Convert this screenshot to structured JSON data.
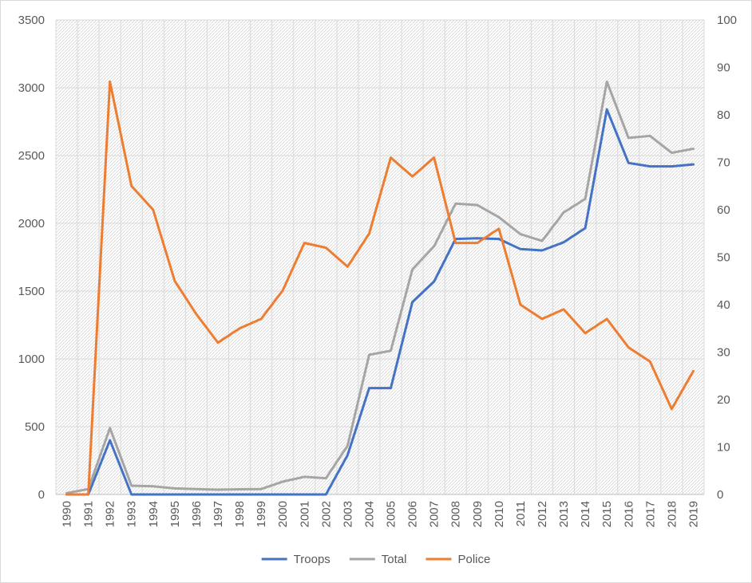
{
  "chart_data": {
    "type": "line",
    "title": "",
    "x": [
      "1990",
      "1991",
      "1992",
      "1993",
      "1994",
      "1995",
      "1996",
      "1997",
      "1998",
      "1999",
      "2000",
      "2001",
      "2002",
      "2003",
      "2004",
      "2005",
      "2006",
      "2007",
      "2008",
      "2009",
      "2010",
      "2011",
      "2012",
      "2013",
      "2014",
      "2015",
      "2016",
      "2017",
      "2018",
      "2019"
    ],
    "y_left": {
      "min": 0,
      "max": 3500,
      "ticks": [
        0,
        500,
        1000,
        1500,
        2000,
        2500,
        3000,
        3500
      ]
    },
    "y_right": {
      "min": 0,
      "max": 100,
      "ticks": [
        0,
        10,
        20,
        30,
        40,
        50,
        60,
        70,
        80,
        90,
        100
      ]
    },
    "grid": true,
    "legend_position": "bottom",
    "series": [
      {
        "name": "Troops",
        "axis": "left",
        "color": "#4472C4",
        "values": [
          0,
          0,
          400,
          0,
          0,
          0,
          0,
          0,
          0,
          0,
          0,
          0,
          0,
          290,
          785,
          785,
          1420,
          1570,
          1885,
          1890,
          1885,
          1810,
          1800,
          1860,
          1965,
          2840,
          2445,
          2420,
          2420,
          2435
        ]
      },
      {
        "name": "Total",
        "axis": "left",
        "color": "#A5A5A5",
        "values": [
          10,
          40,
          490,
          65,
          60,
          45,
          40,
          35,
          38,
          40,
          95,
          130,
          120,
          360,
          1030,
          1060,
          1660,
          1830,
          2145,
          2135,
          2045,
          1920,
          1870,
          2080,
          2180,
          3045,
          2630,
          2645,
          2520,
          2550
        ]
      },
      {
        "name": "Police",
        "axis": "right",
        "color": "#ED7D31",
        "values": [
          0,
          0,
          87,
          65,
          60,
          45,
          38,
          32,
          35,
          37,
          43,
          53,
          52,
          48,
          55,
          71,
          67,
          71,
          53,
          53,
          56,
          40,
          37,
          39,
          34,
          37,
          31,
          28,
          18,
          26
        ]
      }
    ]
  }
}
